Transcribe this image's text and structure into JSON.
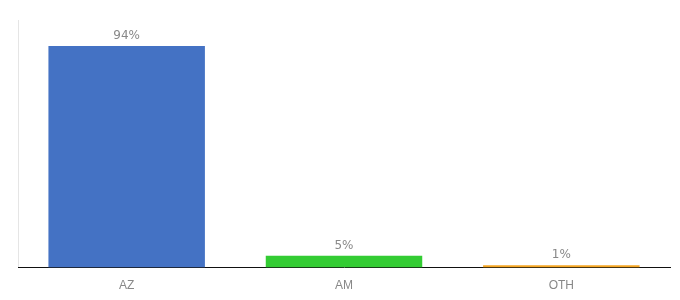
{
  "chart_data": {
    "type": "bar",
    "categories": [
      "AZ",
      "AM",
      "OTH"
    ],
    "values": [
      94,
      5,
      1
    ],
    "value_labels": [
      "94%",
      "5%",
      "1%"
    ],
    "colors": [
      "#4472c4",
      "#33cc33",
      "#f5a623"
    ],
    "ylim": [
      0,
      105
    ],
    "grid": false,
    "data_labels": true,
    "tick_labels": "x"
  }
}
